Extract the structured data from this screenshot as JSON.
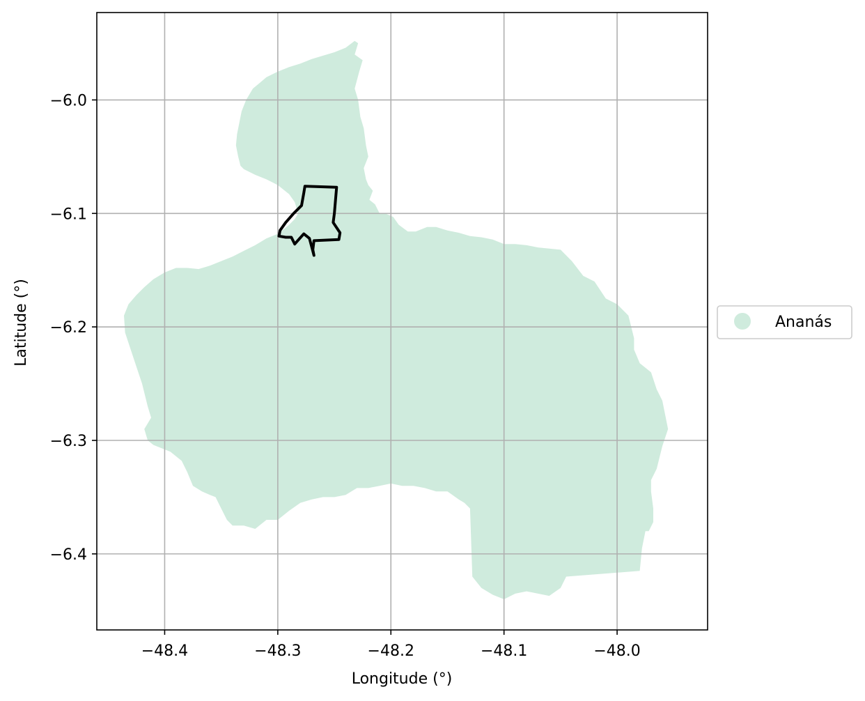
{
  "map": {
    "x_label": "Longitude (°)",
    "y_label": "Latitude (°)",
    "xlim": [
      -48.46,
      -47.92
    ],
    "ylim": [
      -6.467,
      -5.923
    ],
    "x_ticks": [
      -48.4,
      -48.3,
      -48.2,
      -48.1,
      -48.0
    ],
    "x_tick_labels": [
      "−48.4",
      "−48.3",
      "−48.2",
      "−48.1",
      "−48.0"
    ],
    "y_ticks": [
      -6.0,
      -6.1,
      -6.2,
      -6.3,
      -6.4
    ],
    "y_tick_labels": [
      "−6.0",
      "−6.1",
      "−6.2",
      "−6.3",
      "−6.4"
    ],
    "grid": true,
    "legend": {
      "placement": "right",
      "entries": [
        {
          "label": "Ananás",
          "color": "#cfebdd"
        }
      ]
    },
    "colors": {
      "region_fill": "#cfebdd",
      "outline": "#000000",
      "grid": "#b0b0b0"
    }
  },
  "chart_data": {
    "type": "map",
    "xlabel": "Longitude (°)",
    "ylabel": "Latitude (°)",
    "xlim": [
      -48.46,
      -47.92
    ],
    "ylim": [
      -6.467,
      -5.923
    ],
    "grid": true,
    "layers": [
      {
        "name": "Ananás",
        "kind": "filled-polygon",
        "color": "#cfebdd",
        "coordinates": [
          [
            -48.229,
            -5.95
          ],
          [
            -48.232,
            -5.96
          ],
          [
            -48.225,
            -5.965
          ],
          [
            -48.228,
            -5.975
          ],
          [
            -48.232,
            -5.99
          ],
          [
            -48.229,
            -6.0
          ],
          [
            -48.227,
            -6.015
          ],
          [
            -48.224,
            -6.025
          ],
          [
            -48.222,
            -6.04
          ],
          [
            -48.22,
            -6.05
          ],
          [
            -48.224,
            -6.06
          ],
          [
            -48.222,
            -6.07
          ],
          [
            -48.22,
            -6.075
          ],
          [
            -48.216,
            -6.08
          ],
          [
            -48.219,
            -6.088
          ],
          [
            -48.214,
            -6.092
          ],
          [
            -48.21,
            -6.1
          ],
          [
            -48.205,
            -6.1
          ],
          [
            -48.198,
            -6.103
          ],
          [
            -48.193,
            -6.11
          ],
          [
            -48.185,
            -6.116
          ],
          [
            -48.178,
            -6.116
          ],
          [
            -48.168,
            -6.112
          ],
          [
            -48.16,
            -6.112
          ],
          [
            -48.15,
            -6.115
          ],
          [
            -48.14,
            -6.117
          ],
          [
            -48.13,
            -6.12
          ],
          [
            -48.12,
            -6.121
          ],
          [
            -48.11,
            -6.123
          ],
          [
            -48.1,
            -6.127
          ],
          [
            -48.09,
            -6.127
          ],
          [
            -48.08,
            -6.128
          ],
          [
            -48.07,
            -6.13
          ],
          [
            -48.06,
            -6.131
          ],
          [
            -48.05,
            -6.132
          ],
          [
            -48.04,
            -6.142
          ],
          [
            -48.03,
            -6.155
          ],
          [
            -48.02,
            -6.16
          ],
          [
            -48.01,
            -6.175
          ],
          [
            -48.0,
            -6.18
          ],
          [
            -47.99,
            -6.19
          ],
          [
            -47.985,
            -6.21
          ],
          [
            -47.985,
            -6.22
          ],
          [
            -47.98,
            -6.232
          ],
          [
            -47.97,
            -6.24
          ],
          [
            -47.965,
            -6.255
          ],
          [
            -47.96,
            -6.265
          ],
          [
            -47.957,
            -6.28
          ],
          [
            -47.955,
            -6.29
          ],
          [
            -47.96,
            -6.305
          ],
          [
            -47.965,
            -6.325
          ],
          [
            -47.97,
            -6.335
          ],
          [
            -47.97,
            -6.345
          ],
          [
            -47.968,
            -6.36
          ],
          [
            -47.968,
            -6.372
          ],
          [
            -47.972,
            -6.38
          ],
          [
            -47.975,
            -6.38
          ],
          [
            -47.978,
            -6.395
          ],
          [
            -47.98,
            -6.415
          ],
          [
            -48.045,
            -6.42
          ],
          [
            -48.05,
            -6.43
          ],
          [
            -48.06,
            -6.437
          ],
          [
            -48.07,
            -6.435
          ],
          [
            -48.08,
            -6.433
          ],
          [
            -48.09,
            -6.435
          ],
          [
            -48.1,
            -6.44
          ],
          [
            -48.11,
            -6.436
          ],
          [
            -48.12,
            -6.43
          ],
          [
            -48.128,
            -6.42
          ],
          [
            -48.13,
            -6.36
          ],
          [
            -48.135,
            -6.355
          ],
          [
            -48.14,
            -6.352
          ],
          [
            -48.15,
            -6.345
          ],
          [
            -48.16,
            -6.345
          ],
          [
            -48.17,
            -6.342
          ],
          [
            -48.18,
            -6.34
          ],
          [
            -48.19,
            -6.34
          ],
          [
            -48.2,
            -6.338
          ],
          [
            -48.21,
            -6.34
          ],
          [
            -48.22,
            -6.342
          ],
          [
            -48.23,
            -6.342
          ],
          [
            -48.24,
            -6.348
          ],
          [
            -48.25,
            -6.35
          ],
          [
            -48.26,
            -6.35
          ],
          [
            -48.27,
            -6.352
          ],
          [
            -48.28,
            -6.355
          ],
          [
            -48.29,
            -6.362
          ],
          [
            -48.3,
            -6.37
          ],
          [
            -48.31,
            -6.37
          ],
          [
            -48.32,
            -6.378
          ],
          [
            -48.33,
            -6.375
          ],
          [
            -48.34,
            -6.375
          ],
          [
            -48.345,
            -6.37
          ],
          [
            -48.35,
            -6.36
          ],
          [
            -48.355,
            -6.35
          ],
          [
            -48.36,
            -6.348
          ],
          [
            -48.367,
            -6.345
          ],
          [
            -48.375,
            -6.34
          ],
          [
            -48.38,
            -6.328
          ],
          [
            -48.385,
            -6.318
          ],
          [
            -48.395,
            -6.31
          ],
          [
            -48.41,
            -6.304
          ],
          [
            -48.415,
            -6.3
          ],
          [
            -48.418,
            -6.29
          ],
          [
            -48.415,
            -6.285
          ],
          [
            -48.412,
            -6.28
          ],
          [
            -48.415,
            -6.27
          ],
          [
            -48.42,
            -6.25
          ],
          [
            -48.425,
            -6.235
          ],
          [
            -48.43,
            -6.22
          ],
          [
            -48.435,
            -6.205
          ],
          [
            -48.436,
            -6.19
          ],
          [
            -48.432,
            -6.18
          ],
          [
            -48.425,
            -6.172
          ],
          [
            -48.418,
            -6.165
          ],
          [
            -48.41,
            -6.158
          ],
          [
            -48.4,
            -6.152
          ],
          [
            -48.39,
            -6.148
          ],
          [
            -48.38,
            -6.148
          ],
          [
            -48.37,
            -6.149
          ],
          [
            -48.36,
            -6.146
          ],
          [
            -48.35,
            -6.142
          ],
          [
            -48.34,
            -6.138
          ],
          [
            -48.33,
            -6.133
          ],
          [
            -48.32,
            -6.128
          ],
          [
            -48.31,
            -6.122
          ],
          [
            -48.3,
            -6.118
          ],
          [
            -48.29,
            -6.11
          ],
          [
            -48.285,
            -6.105
          ],
          [
            -48.282,
            -6.1
          ],
          [
            -48.285,
            -6.09
          ],
          [
            -48.29,
            -6.083
          ],
          [
            -48.3,
            -6.075
          ],
          [
            -48.31,
            -6.07
          ],
          [
            -48.32,
            -6.066
          ],
          [
            -48.33,
            -6.061
          ],
          [
            -48.333,
            -6.058
          ],
          [
            -48.335,
            -6.05
          ],
          [
            -48.337,
            -6.04
          ],
          [
            -48.336,
            -6.03
          ],
          [
            -48.332,
            -6.01
          ],
          [
            -48.328,
            -6.0
          ],
          [
            -48.322,
            -5.99
          ],
          [
            -48.316,
            -5.985
          ],
          [
            -48.31,
            -5.98
          ],
          [
            -48.3,
            -5.975
          ],
          [
            -48.29,
            -5.971
          ],
          [
            -48.28,
            -5.968
          ],
          [
            -48.27,
            -5.964
          ],
          [
            -48.26,
            -5.961
          ],
          [
            -48.25,
            -5.958
          ],
          [
            -48.24,
            -5.954
          ],
          [
            -48.232,
            -5.948
          ],
          [
            -48.229,
            -5.95
          ]
        ]
      },
      {
        "name": "",
        "kind": "outline",
        "color": "#000000",
        "coordinates": [
          [
            -48.276,
            -6.076
          ],
          [
            -48.248,
            -6.077
          ],
          [
            -48.25,
            -6.1
          ],
          [
            -48.251,
            -6.108
          ],
          [
            -48.245,
            -6.117
          ],
          [
            -48.246,
            -6.123
          ],
          [
            -48.268,
            -6.124
          ],
          [
            -48.269,
            -6.132
          ],
          [
            -48.268,
            -6.137
          ],
          [
            -48.272,
            -6.122
          ],
          [
            -48.277,
            -6.118
          ],
          [
            -48.285,
            -6.127
          ],
          [
            -48.288,
            -6.121
          ],
          [
            -48.293,
            -6.121
          ],
          [
            -48.299,
            -6.12
          ],
          [
            -48.298,
            -6.115
          ],
          [
            -48.293,
            -6.108
          ],
          [
            -48.286,
            -6.1
          ],
          [
            -48.279,
            -6.093
          ],
          [
            -48.277,
            -6.082
          ],
          [
            -48.276,
            -6.076
          ]
        ]
      }
    ]
  }
}
